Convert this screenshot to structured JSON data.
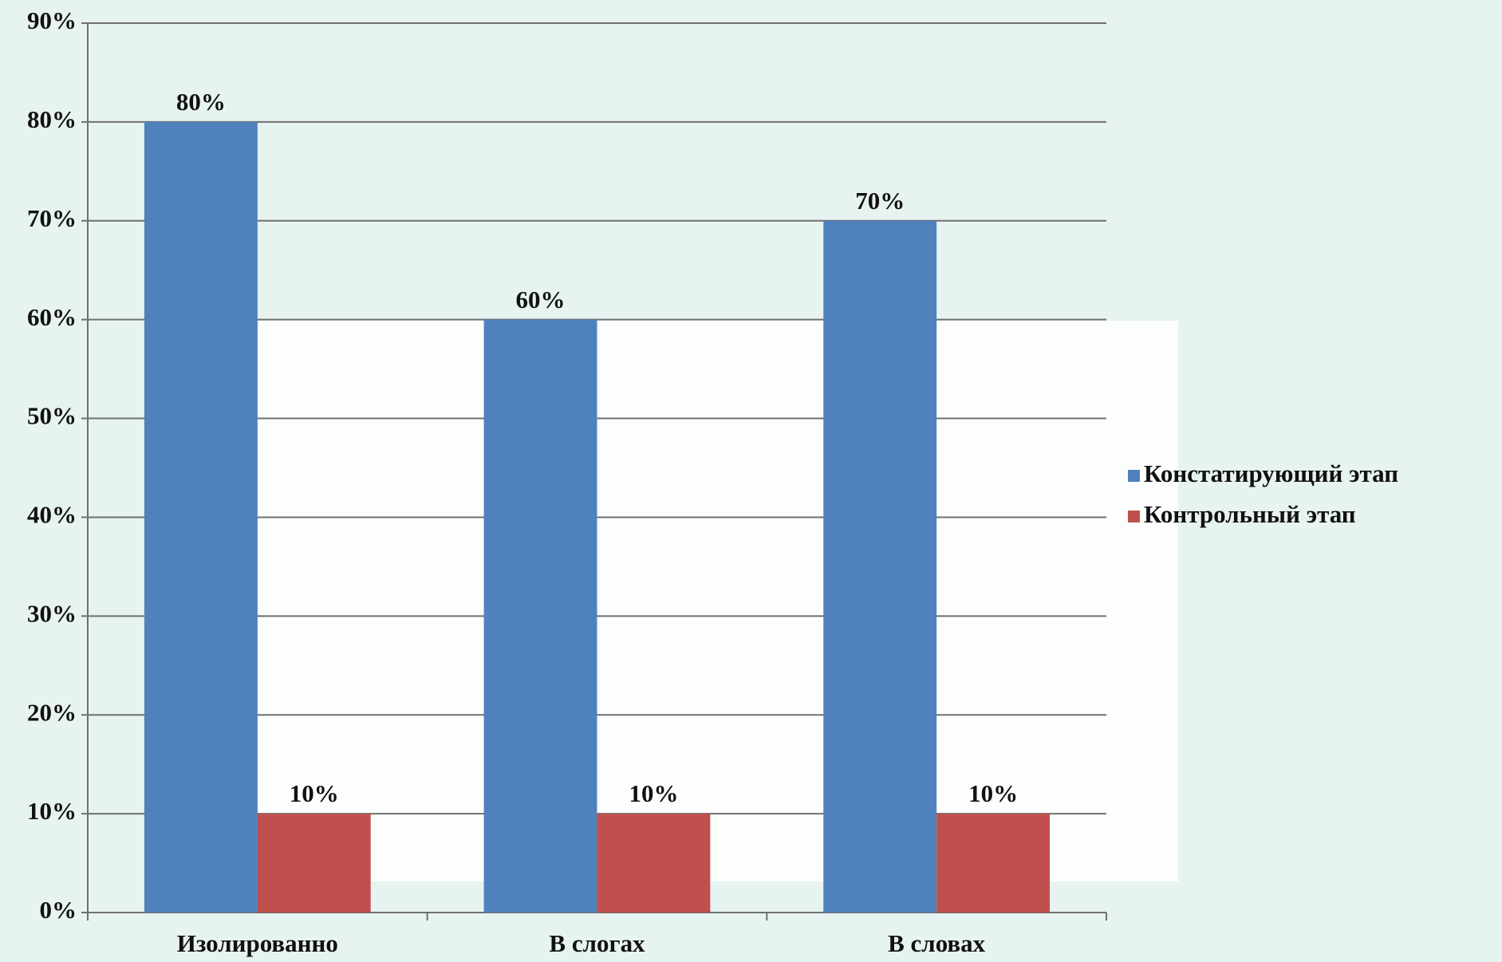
{
  "chart_data": {
    "type": "bar",
    "categories": [
      "Изолированно",
      "В слогах",
      "В словах"
    ],
    "series": [
      {
        "name": "Констатирующий этап",
        "color": "#4f81bd",
        "values": [
          80,
          60,
          70
        ],
        "value_labels": [
          "80%",
          "60%",
          "70%"
        ]
      },
      {
        "name": "Контрольный этап",
        "color": "#c0504d",
        "values": [
          10,
          10,
          10
        ],
        "value_labels": [
          "10%",
          "10%",
          "10%"
        ]
      }
    ],
    "ylim": [
      0,
      90
    ],
    "yticks": [
      {
        "value": 0,
        "label": "0%"
      },
      {
        "value": 10,
        "label": "10%"
      },
      {
        "value": 20,
        "label": "20%"
      },
      {
        "value": 30,
        "label": "30%"
      },
      {
        "value": 40,
        "label": "40%"
      },
      {
        "value": 50,
        "label": "50%"
      },
      {
        "value": 60,
        "label": "60%"
      },
      {
        "value": 70,
        "label": "70%"
      },
      {
        "value": 80,
        "label": "80%"
      },
      {
        "value": 90,
        "label": "90%"
      }
    ],
    "grid": true,
    "legend": "right"
  }
}
